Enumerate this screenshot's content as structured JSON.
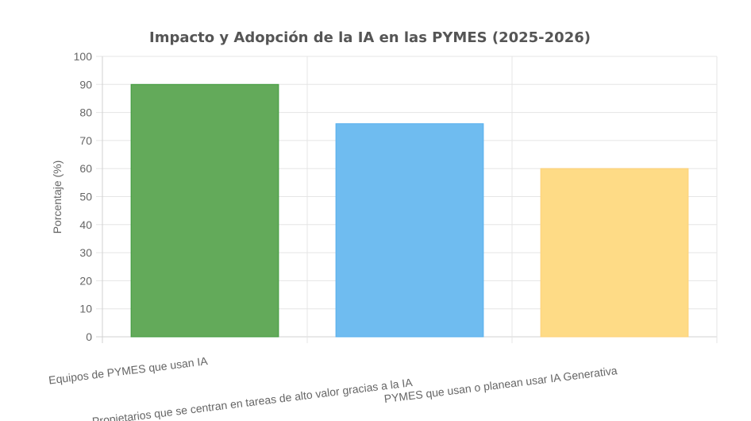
{
  "chart_data": {
    "type": "bar",
    "title": "Impacto y Adopción de la IA en las PYMES (2025-2026)",
    "xlabel": "",
    "ylabel": "Porcentaje (%)",
    "ylim": [
      0,
      100
    ],
    "ytick_step": 10,
    "grid": true,
    "legend": "none",
    "categories": [
      "Equipos de PYMES que usan IA",
      "Propietarios que se centran en tareas de alto valor gracias a la IA",
      "PYMES que usan o planean usar IA Generativa"
    ],
    "values": [
      90,
      76,
      60
    ],
    "colors": {
      "fills": [
        "#63aa5a",
        "#6fbcf0",
        "#fedb86"
      ],
      "borders": [
        "#3f9a3c",
        "#58b0ee",
        "#fdd27a"
      ],
      "grid": "#e5e5e5",
      "axis": "#d0d0d0"
    }
  }
}
